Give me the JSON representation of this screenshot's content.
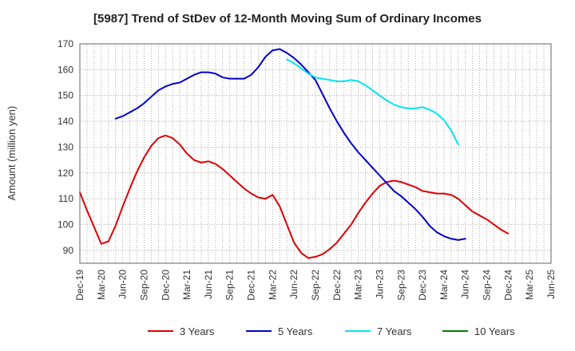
{
  "chart_data": {
    "type": "line",
    "title": "[5987]  Trend of StDev of 12-Month Moving Sum of Ordinary Incomes",
    "xlabel": "",
    "ylabel": "Amount (million yen)",
    "ylim": [
      85,
      170
    ],
    "yticks": [
      90,
      100,
      110,
      120,
      130,
      140,
      150,
      160,
      170
    ],
    "x_range_months": [
      0,
      66
    ],
    "x_ticks": [
      {
        "label": "Dec-19",
        "month": 0
      },
      {
        "label": "Mar-20",
        "month": 3
      },
      {
        "label": "Jun-20",
        "month": 6
      },
      {
        "label": "Sep-20",
        "month": 9
      },
      {
        "label": "Dec-20",
        "month": 12
      },
      {
        "label": "Mar-21",
        "month": 15
      },
      {
        "label": "Jun-21",
        "month": 18
      },
      {
        "label": "Sep-21",
        "month": 21
      },
      {
        "label": "Dec-21",
        "month": 24
      },
      {
        "label": "Mar-22",
        "month": 27
      },
      {
        "label": "Jun-22",
        "month": 30
      },
      {
        "label": "Sep-22",
        "month": 33
      },
      {
        "label": "Dec-22",
        "month": 36
      },
      {
        "label": "Mar-23",
        "month": 39
      },
      {
        "label": "Jun-23",
        "month": 42
      },
      {
        "label": "Sep-23",
        "month": 45
      },
      {
        "label": "Dec-23",
        "month": 48
      },
      {
        "label": "Mar-24",
        "month": 51
      },
      {
        "label": "Jun-24",
        "month": 54
      },
      {
        "label": "Sep-24",
        "month": 57
      },
      {
        "label": "Dec-24",
        "month": 60
      },
      {
        "label": "Mar-25",
        "month": 63
      },
      {
        "label": "Jun-25",
        "month": 66
      }
    ],
    "grid": true,
    "legend_position": "bottom",
    "series": [
      {
        "name": "3 Years",
        "color": "#dd0000",
        "start_month": 0,
        "values": [
          112.5,
          105.5,
          99,
          92.5,
          93.5,
          99.5,
          107,
          114,
          120.5,
          126,
          130.5,
          133.5,
          134.5,
          133.5,
          131,
          127.5,
          125,
          124,
          124.5,
          123.5,
          121.5,
          119,
          116.5,
          114,
          112,
          110.5,
          110,
          111.5,
          107,
          100,
          93,
          89,
          87,
          87.5,
          88.5,
          90.5,
          93,
          96.5,
          100,
          104.5,
          108.5,
          112,
          115,
          116.5,
          117,
          116.5,
          115.5,
          114.5,
          113,
          112.5,
          112,
          112,
          111.5,
          110,
          107.5,
          105,
          103.5,
          102,
          100,
          98,
          96.5
        ]
      },
      {
        "name": "5 Years",
        "color": "#0000cc",
        "start_month": 5,
        "values": [
          141,
          142,
          143.5,
          145,
          147,
          149.5,
          152,
          153.5,
          154.5,
          155,
          156.5,
          158,
          159,
          159,
          158.5,
          157,
          156.5,
          156.5,
          156.5,
          158,
          161,
          165,
          167.5,
          168,
          166.5,
          164.5,
          162,
          159,
          156,
          150.5,
          145,
          140,
          135.5,
          131.5,
          128,
          125,
          122,
          119,
          116,
          113,
          111,
          108.5,
          106,
          103,
          99.5,
          97,
          95.5,
          94.5,
          94,
          94.5
        ]
      },
      {
        "name": "7 Years",
        "color": "#00e5ee",
        "start_month": 29,
        "values": [
          164,
          162.5,
          160.5,
          158.5,
          157,
          156.5,
          156,
          155.5,
          155.5,
          156,
          155.5,
          154,
          152,
          150,
          148,
          146.5,
          145.5,
          145,
          145,
          145.5,
          144.5,
          143,
          140.5,
          136.5,
          131
        ]
      },
      {
        "name": "10 Years",
        "color": "#008000",
        "start_month": 0,
        "values": []
      }
    ]
  }
}
